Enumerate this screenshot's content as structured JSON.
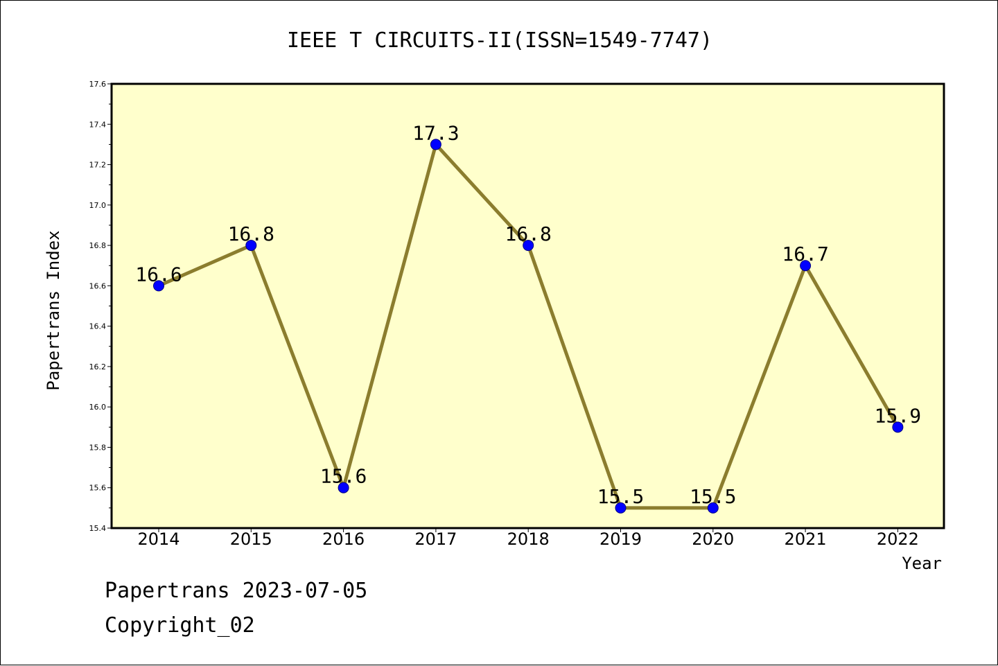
{
  "chart_data": {
    "type": "line",
    "title": "IEEE T CIRCUITS-II(ISSN=1549-7747)",
    "xlabel": "Year",
    "ylabel": "Papertrans Index",
    "categories": [
      "2014",
      "2015",
      "2016",
      "2017",
      "2018",
      "2019",
      "2020",
      "2021",
      "2022"
    ],
    "series": [
      {
        "values": [
          16.6,
          16.8,
          15.6,
          17.3,
          16.8,
          15.5,
          15.5,
          16.7,
          15.9
        ]
      }
    ],
    "data_labels": [
      "16.6",
      "16.8",
      "15.6",
      "17.3",
      "16.8",
      "15.5",
      "15.5",
      "16.7",
      "15.9"
    ],
    "ylim": [
      15.4,
      17.6
    ],
    "yticks": [
      "15.4",
      "15.6",
      "15.8",
      "16.0",
      "16.2",
      "16.4",
      "16.6",
      "16.8",
      "17.0",
      "17.2",
      "17.4",
      "17.6"
    ],
    "grid": false,
    "legend": "none",
    "colors": {
      "plot_background": "#ffffcc",
      "line": "#8b7d2e",
      "marker": "#0000ff"
    }
  },
  "footer": {
    "date_text": "Papertrans 2023-07-05",
    "copyright_text": "Copyright_02"
  }
}
